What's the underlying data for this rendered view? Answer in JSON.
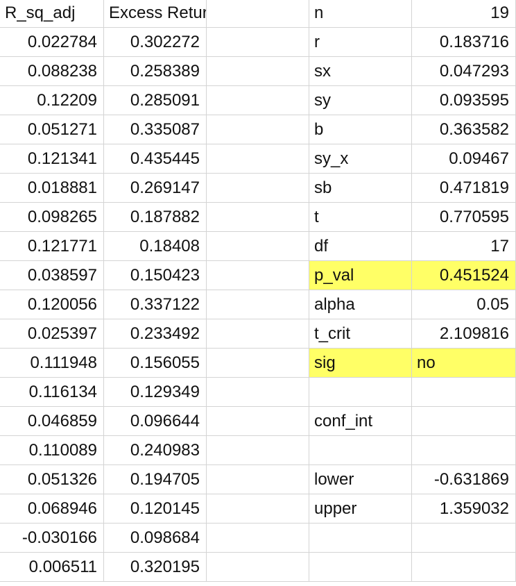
{
  "headers": {
    "r_sq_adj": "R_sq_adj",
    "excess_return": "Excess Return"
  },
  "rows": [
    {
      "r_sq_adj": "0.022784",
      "excess_return": "0.302272"
    },
    {
      "r_sq_adj": "0.088238",
      "excess_return": "0.258389"
    },
    {
      "r_sq_adj": "0.12209",
      "excess_return": "0.285091"
    },
    {
      "r_sq_adj": "0.051271",
      "excess_return": "0.335087"
    },
    {
      "r_sq_adj": "0.121341",
      "excess_return": "0.435445"
    },
    {
      "r_sq_adj": "0.018881",
      "excess_return": "0.269147"
    },
    {
      "r_sq_adj": "0.098265",
      "excess_return": "0.187882"
    },
    {
      "r_sq_adj": "0.121771",
      "excess_return": "0.18408"
    },
    {
      "r_sq_adj": "0.038597",
      "excess_return": "0.150423"
    },
    {
      "r_sq_adj": "0.120056",
      "excess_return": "0.337122"
    },
    {
      "r_sq_adj": "0.025397",
      "excess_return": "0.233492"
    },
    {
      "r_sq_adj": "0.111948",
      "excess_return": "0.156055"
    },
    {
      "r_sq_adj": "0.116134",
      "excess_return": "0.129349"
    },
    {
      "r_sq_adj": "0.046859",
      "excess_return": "0.096644"
    },
    {
      "r_sq_adj": "0.110089",
      "excess_return": "0.240983"
    },
    {
      "r_sq_adj": "0.051326",
      "excess_return": "0.194705"
    },
    {
      "r_sq_adj": "0.068946",
      "excess_return": "0.120145"
    },
    {
      "r_sq_adj": "-0.030166",
      "excess_return": "0.098684"
    },
    {
      "r_sq_adj": "0.006511",
      "excess_return": "0.320195"
    }
  ],
  "stats": [
    {
      "label": "n",
      "value": "19"
    },
    {
      "label": "r",
      "value": "0.183716"
    },
    {
      "label": "sx",
      "value": "0.047293"
    },
    {
      "label": "sy",
      "value": "0.093595"
    },
    {
      "label": "b",
      "value": "0.363582"
    },
    {
      "label": "sy_x",
      "value": "0.09467"
    },
    {
      "label": "sb",
      "value": "0.471819"
    },
    {
      "label": "t",
      "value": "0.770595"
    },
    {
      "label": "df",
      "value": "17"
    },
    {
      "label": "p_val",
      "value": "0.451524",
      "highlight": true
    },
    {
      "label": "alpha",
      "value": "0.05"
    },
    {
      "label": "t_crit",
      "value": "2.109816"
    },
    {
      "label": "sig",
      "value": "no",
      "highlight": true,
      "value_align": "left"
    },
    {
      "label": "",
      "value": ""
    },
    {
      "label": "conf_int",
      "value": ""
    },
    {
      "label": "",
      "value": ""
    },
    {
      "label": "lower",
      "value": "-0.631869"
    },
    {
      "label": "upper",
      "value": "1.359032"
    },
    {
      "label": "",
      "value": ""
    },
    {
      "label": "",
      "value": ""
    }
  ],
  "colors": {
    "highlight": "#ffff66",
    "gridline": "#d4d4d4",
    "text": "#111111"
  }
}
